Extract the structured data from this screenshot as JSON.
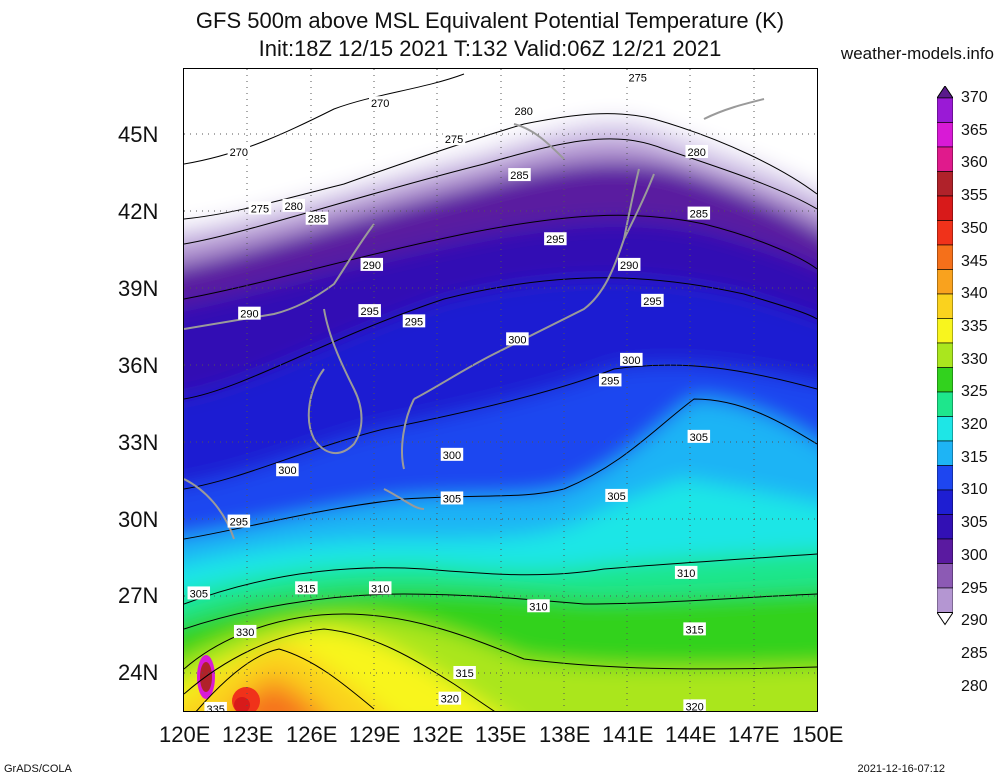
{
  "title_line1": "GFS 500m above MSL Equivalent Potential Temperature (K)",
  "title_line2": "Init:18Z 12/15 2021 T:132 Valid:06Z 12/21 2021",
  "site": "weather-models.info",
  "footer_left": "GrADS/COLA",
  "footer_right": "2021-12-16-07:12",
  "lat_labels": [
    "45N",
    "42N",
    "39N",
    "36N",
    "33N",
    "30N",
    "27N",
    "24N"
  ],
  "lon_labels": [
    "120E",
    "123E",
    "126E",
    "129E",
    "132E",
    "135E",
    "138E",
    "141E",
    "144E",
    "147E",
    "150E"
  ],
  "colorbar": {
    "levels": [
      "370",
      "365",
      "360",
      "355",
      "350",
      "345",
      "340",
      "335",
      "330",
      "325",
      "320",
      "315",
      "310",
      "305",
      "300",
      "295",
      "290",
      "285",
      "280"
    ],
    "colors": [
      "#5a1a8c",
      "#9a1ad6",
      "#d81ad6",
      "#e01a8c",
      "#b0222a",
      "#d81a1a",
      "#f0321a",
      "#f5701a",
      "#f9a21e",
      "#fad21e",
      "#f8f51e",
      "#aae61e",
      "#32d21e",
      "#1ee68c",
      "#1ee6e6",
      "#1eb4f5",
      "#1e46f0",
      "#1e1ed2",
      "#3210b4",
      "#5a1aa0",
      "#8c5ab4",
      "#b496d2",
      "#dcd2ee"
    ]
  },
  "contour_labels": [
    {
      "text": "275",
      "lon": 141.5,
      "lat": 47.2
    },
    {
      "text": "270",
      "lon": 129.3,
      "lat": 46.2
    },
    {
      "text": "280",
      "lon": 136.1,
      "lat": 45.9
    },
    {
      "text": "275",
      "lon": 132.8,
      "lat": 44.8
    },
    {
      "text": "270",
      "lon": 122.6,
      "lat": 44.3
    },
    {
      "text": "280",
      "lon": 144.3,
      "lat": 44.3
    },
    {
      "text": "285",
      "lon": 135.9,
      "lat": 43.4
    },
    {
      "text": "275",
      "lon": 123.6,
      "lat": 42.1
    },
    {
      "text": "280",
      "lon": 125.2,
      "lat": 42.2
    },
    {
      "text": "285",
      "lon": 126.3,
      "lat": 41.7
    },
    {
      "text": "285",
      "lon": 144.4,
      "lat": 41.9
    },
    {
      "text": "295",
      "lon": 137.6,
      "lat": 40.9
    },
    {
      "text": "290",
      "lon": 128.9,
      "lat": 39.9
    },
    {
      "text": "290",
      "lon": 141.1,
      "lat": 39.9
    },
    {
      "text": "295",
      "lon": 142.2,
      "lat": 38.5
    },
    {
      "text": "290",
      "lon": 123.1,
      "lat": 38.0
    },
    {
      "text": "295",
      "lon": 128.8,
      "lat": 38.1
    },
    {
      "text": "295",
      "lon": 130.9,
      "lat": 37.7
    },
    {
      "text": "300",
      "lon": 135.8,
      "lat": 37.0
    },
    {
      "text": "300",
      "lon": 141.2,
      "lat": 36.2
    },
    {
      "text": "295",
      "lon": 140.2,
      "lat": 35.4
    },
    {
      "text": "305",
      "lon": 144.4,
      "lat": 33.2
    },
    {
      "text": "300",
      "lon": 132.7,
      "lat": 32.5
    },
    {
      "text": "300",
      "lon": 124.9,
      "lat": 31.9
    },
    {
      "text": "305",
      "lon": 132.7,
      "lat": 30.8
    },
    {
      "text": "305",
      "lon": 140.5,
      "lat": 30.9
    },
    {
      "text": "295",
      "lon": 122.6,
      "lat": 29.9
    },
    {
      "text": "315",
      "lon": 125.8,
      "lat": 27.3
    },
    {
      "text": "310",
      "lon": 129.3,
      "lat": 27.3
    },
    {
      "text": "305",
      "lon": 120.7,
      "lat": 27.1
    },
    {
      "text": "310",
      "lon": 143.8,
      "lat": 27.9
    },
    {
      "text": "310",
      "lon": 136.8,
      "lat": 26.6
    },
    {
      "text": "330",
      "lon": 122.9,
      "lat": 25.6
    },
    {
      "text": "315",
      "lon": 144.2,
      "lat": 25.7
    },
    {
      "text": "315",
      "lon": 133.3,
      "lat": 24.0
    },
    {
      "text": "320",
      "lon": 132.6,
      "lat": 23.0
    },
    {
      "text": "335",
      "lon": 121.5,
      "lat": 22.6
    },
    {
      "text": "320",
      "lon": 144.2,
      "lat": 22.7
    }
  ]
}
